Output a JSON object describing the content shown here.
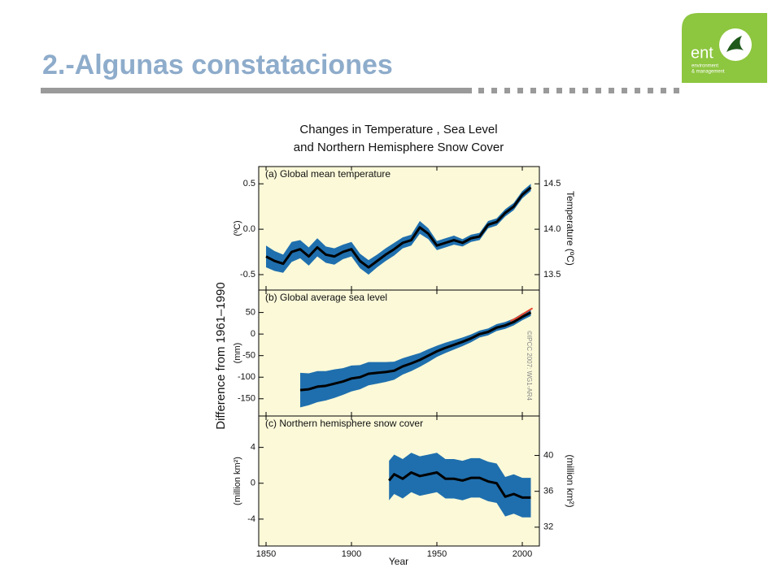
{
  "header": {
    "title": "2.-Algunas constataciones"
  },
  "logo": {
    "name": "ent",
    "line1": "environment",
    "line2": "& management"
  },
  "figure": {
    "title_lines": [
      "Changes in Temperature , Sea Level",
      "and Northern Hemisphere Snow Cover"
    ],
    "ylabel": "Difference from 1961–1990",
    "xlabel": "Year",
    "note": "©IPCC 2007: WG1-AR4"
  },
  "chart_data": [
    {
      "type": "line",
      "title": "(a) Global mean temperature",
      "ylabel": "(ºC)",
      "y2label": "Temperature (ºC)",
      "xlim": [
        1845.7,
        2010
      ],
      "xticks": [
        1850,
        1900,
        1950,
        2000
      ],
      "ylim": [
        -0.67,
        0.69
      ],
      "yticks": [
        0.5,
        {
          "value": 0,
          "label": "0.0"
        },
        -0.5
      ],
      "y2lim": [
        13.33,
        14.69
      ],
      "y2ticks": [
        14.5,
        {
          "value": 14,
          "label": "14.0"
        },
        13.5
      ],
      "series": [
        {
          "color": "#000000",
          "band_color": "#1f6fae",
          "x": [
            1850,
            1855,
            1860,
            1865,
            1870,
            1875,
            1880,
            1885,
            1890,
            1895,
            1900,
            1905,
            1910,
            1915,
            1920,
            1925,
            1930,
            1935,
            1940,
            1945,
            1950,
            1955,
            1960,
            1965,
            1970,
            1975,
            1980,
            1985,
            1990,
            1995,
            2000,
            2005
          ],
          "values": [
            -0.3,
            -0.35,
            -0.38,
            -0.25,
            -0.22,
            -0.3,
            -0.2,
            -0.28,
            -0.3,
            -0.25,
            -0.22,
            -0.35,
            -0.42,
            -0.35,
            -0.28,
            -0.22,
            -0.15,
            -0.12,
            0.02,
            -0.05,
            -0.18,
            -0.15,
            -0.12,
            -0.15,
            -0.1,
            -0.08,
            0.05,
            0.08,
            0.18,
            0.25,
            0.38,
            0.46
          ],
          "lower": [
            -0.42,
            -0.46,
            -0.48,
            -0.36,
            -0.32,
            -0.4,
            -0.3,
            -0.37,
            -0.39,
            -0.33,
            -0.3,
            -0.43,
            -0.5,
            -0.42,
            -0.35,
            -0.29,
            -0.21,
            -0.18,
            -0.05,
            -0.11,
            -0.23,
            -0.2,
            -0.17,
            -0.19,
            -0.14,
            -0.12,
            0.01,
            0.04,
            0.14,
            0.21,
            0.34,
            0.42
          ],
          "upper": [
            -0.18,
            -0.24,
            -0.28,
            -0.14,
            -0.12,
            -0.2,
            -0.1,
            -0.19,
            -0.21,
            -0.17,
            -0.14,
            -0.27,
            -0.34,
            -0.28,
            -0.21,
            -0.15,
            -0.09,
            -0.06,
            0.09,
            0.01,
            -0.13,
            -0.1,
            -0.07,
            -0.11,
            -0.06,
            -0.04,
            0.09,
            0.12,
            0.22,
            0.29,
            0.42,
            0.5
          ]
        }
      ]
    },
    {
      "type": "line",
      "title": "(b) Global average sea level",
      "ylabel": "(mm)",
      "xlim": [
        1845.7,
        2010
      ],
      "xticks": [
        1850,
        1900,
        1950,
        2000
      ],
      "ylim": [
        -190,
        102
      ],
      "yticks": [
        50,
        0,
        -50,
        -100,
        -150
      ],
      "series": [
        {
          "color": "#000000",
          "band_color": "#1f6fae",
          "x": [
            1870,
            1875,
            1880,
            1885,
            1890,
            1895,
            1900,
            1905,
            1910,
            1915,
            1920,
            1925,
            1930,
            1935,
            1940,
            1945,
            1950,
            1955,
            1960,
            1965,
            1970,
            1975,
            1980,
            1985,
            1990,
            1995,
            2000,
            2005
          ],
          "values": [
            -130,
            -128,
            -122,
            -120,
            -115,
            -110,
            -103,
            -100,
            -92,
            -90,
            -88,
            -85,
            -75,
            -68,
            -60,
            -50,
            -40,
            -32,
            -25,
            -18,
            -10,
            0,
            5,
            15,
            20,
            28,
            40,
            50
          ],
          "lower": [
            -170,
            -165,
            -158,
            -154,
            -148,
            -141,
            -133,
            -128,
            -119,
            -115,
            -111,
            -106,
            -94,
            -86,
            -76,
            -65,
            -53,
            -44,
            -36,
            -28,
            -19,
            -8,
            -3,
            7,
            12,
            20,
            32,
            42
          ],
          "upper": [
            -90,
            -91,
            -86,
            -86,
            -82,
            -79,
            -73,
            -72,
            -65,
            -65,
            -65,
            -64,
            -56,
            -50,
            -44,
            -35,
            -27,
            -20,
            -14,
            -8,
            -1,
            8,
            13,
            23,
            28,
            36,
            48,
            58
          ]
        },
        {
          "color": "#e8442c",
          "x": [
            1993,
            1997,
            2001,
            2006
          ],
          "values": [
            30,
            38,
            48,
            60
          ]
        }
      ]
    },
    {
      "type": "line",
      "title": "(c) Northern hemisphere snow cover",
      "ylabel": "(million km²)",
      "y2label": "(million km²)",
      "xlim": [
        1845.7,
        2010
      ],
      "xticks": [
        1850,
        1900,
        1950,
        2000
      ],
      "ylim": [
        -7,
        7.5
      ],
      "yticks": [
        4,
        0,
        -4
      ],
      "y2lim": [
        29.9,
        44.4
      ],
      "y2ticks": [
        40,
        36,
        32
      ],
      "series": [
        {
          "color": "#000000",
          "band_color": "#1f6fae",
          "x": [
            1922,
            1925,
            1930,
            1935,
            1940,
            1945,
            1950,
            1955,
            1960,
            1965,
            1970,
            1975,
            1980,
            1985,
            1990,
            1995,
            2000,
            2005
          ],
          "values": [
            0.3,
            1.0,
            0.5,
            1.2,
            0.8,
            1.0,
            1.2,
            0.5,
            0.5,
            0.3,
            0.6,
            0.6,
            0.2,
            0.0,
            -1.5,
            -1.2,
            -1.6,
            -1.6
          ],
          "lower": [
            -1.9,
            -1.2,
            -1.7,
            -1.0,
            -1.4,
            -1.2,
            -1.0,
            -1.7,
            -1.7,
            -1.9,
            -1.6,
            -1.6,
            -2.0,
            -2.2,
            -3.7,
            -3.4,
            -3.8,
            -3.8
          ],
          "upper": [
            2.5,
            3.2,
            2.7,
            3.4,
            3.0,
            3.2,
            3.4,
            2.7,
            2.7,
            2.5,
            2.8,
            2.8,
            2.4,
            2.2,
            0.7,
            1.0,
            0.6,
            0.6
          ]
        }
      ]
    }
  ]
}
